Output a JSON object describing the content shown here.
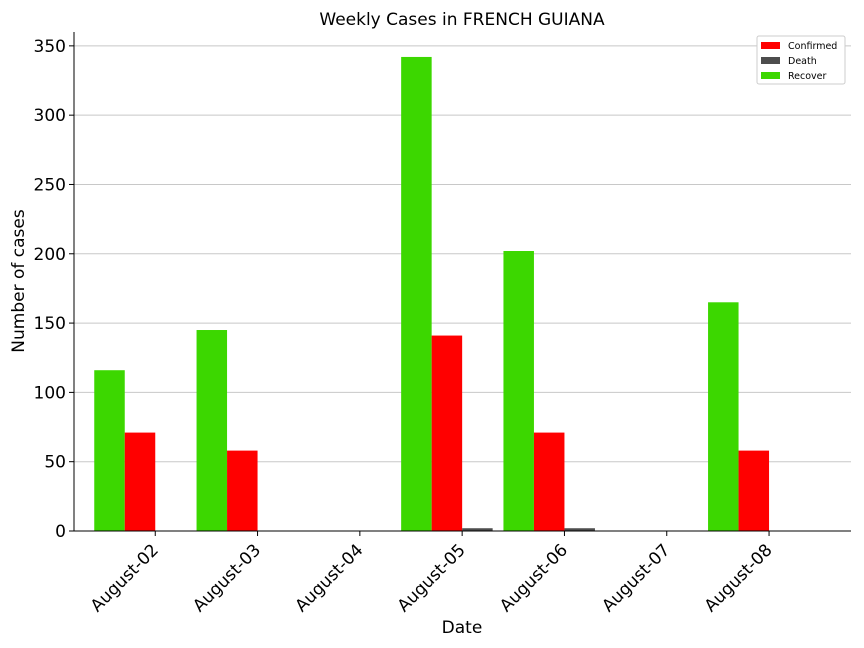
{
  "chart_data": {
    "type": "bar",
    "title": "Weekly Cases in FRENCH GUIANA",
    "xlabel": "Date",
    "ylabel": "Number of cases",
    "categories": [
      "August-02",
      "August-03",
      "August-04",
      "August-05",
      "August-06",
      "August-07",
      "August-08"
    ],
    "series": [
      {
        "name": "Recover",
        "color": "#3cd700",
        "values": [
          116,
          145,
          0,
          342,
          202,
          0,
          165
        ]
      },
      {
        "name": "Confirmed",
        "color": "#ff0000",
        "values": [
          71,
          58,
          0,
          141,
          71,
          0,
          58
        ]
      },
      {
        "name": "Death",
        "color": "#4d4d4d",
        "values": [
          0,
          0,
          0,
          2,
          2,
          0,
          0
        ]
      }
    ],
    "legend_order": [
      "Confirmed",
      "Death",
      "Recover"
    ],
    "ylim": [
      0,
      360
    ],
    "yticks": [
      0,
      50,
      100,
      150,
      200,
      250,
      300,
      350
    ],
    "grid": "horizontal",
    "legend_position": "top-right"
  }
}
